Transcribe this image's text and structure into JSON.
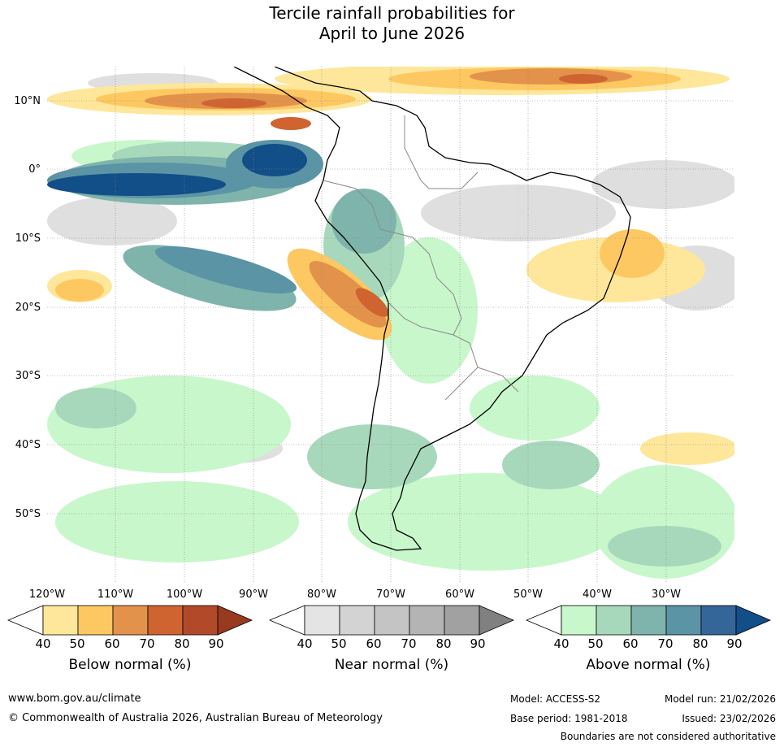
{
  "title_line1": "Tercile rainfall probabilities for",
  "title_line2": "April to June 2026",
  "lat_labels": [
    "10°N",
    "0°",
    "10°S",
    "20°S",
    "30°S",
    "40°S",
    "50°S"
  ],
  "lon_labels": [
    "120°W",
    "110°W",
    "100°W",
    "90°W",
    "80°W",
    "70°W",
    "60°W",
    "50°W",
    "40°W",
    "30°W"
  ],
  "colorbars": [
    {
      "caption": "Below normal (%)",
      "ticks": [
        "40",
        "50",
        "60",
        "70",
        "80",
        "90"
      ],
      "colors": [
        "#ffffff",
        "#fee79a",
        "#fdc861",
        "#e3924b",
        "#cf6431",
        "#b24a2a",
        "#973a20"
      ]
    },
    {
      "caption": "Near normal (%)",
      "ticks": [
        "40",
        "50",
        "60",
        "70",
        "80",
        "90"
      ],
      "colors": [
        "#ffffff",
        "#e4e4e4",
        "#d3d3d3",
        "#c4c4c4",
        "#b4b4b4",
        "#a1a1a1",
        "#808080"
      ]
    },
    {
      "caption": "Above normal (%)",
      "ticks": [
        "40",
        "50",
        "60",
        "70",
        "80",
        "90"
      ],
      "colors": [
        "#ffffff",
        "#c8f7cb",
        "#a8d8bb",
        "#7fb4ad",
        "#5b94a5",
        "#356699",
        "#124e87"
      ]
    }
  ],
  "footer": {
    "url": "www.bom.gov.au/climate",
    "copyright": "© Commonwealth of Australia 2026, Australian Bureau of Meteorology",
    "model": "Model: ACCESS-S2",
    "model_run": "Model run: 21/02/2026",
    "base_period": "Base period: 1981-2018",
    "issued": "Issued: 23/02/2026",
    "disclaimer": "Boundaries are not considered authoritative"
  }
}
